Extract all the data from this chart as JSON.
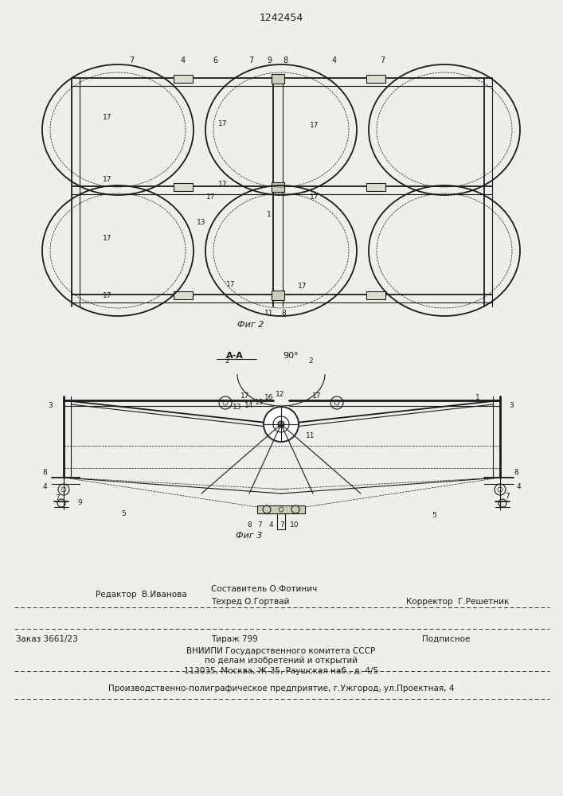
{
  "patent_number": "1242454",
  "bg_color": "#f0eeeb",
  "line_color": "#1a1a1a",
  "fig2_caption": "Фиг 2",
  "fig3_caption": "Фиг 3",
  "section_label": "A-A",
  "angle_label": "90°",
  "footer": {
    "line1_left": "Редактор  В.Иванова",
    "line1_center_top": "Составитель О.Фотинич",
    "line1_center": "Техред О.Гортвай",
    "line1_right": "Корректор  Г.Решетник",
    "line2_left": "Заказ 3661/23",
    "line2_center": "Тираж 799",
    "line2_right": "Подписное",
    "line3": "ВНИИПИ Государственного комитета СССР",
    "line4": "по делам изобретений и открытий",
    "line5": "113035, Москва, Ж-35, Раушская наб., д. 4/5",
    "line6": "Производственно-полиграфическое предприятие, г.Ужгород, ул.Проектная, 4"
  }
}
